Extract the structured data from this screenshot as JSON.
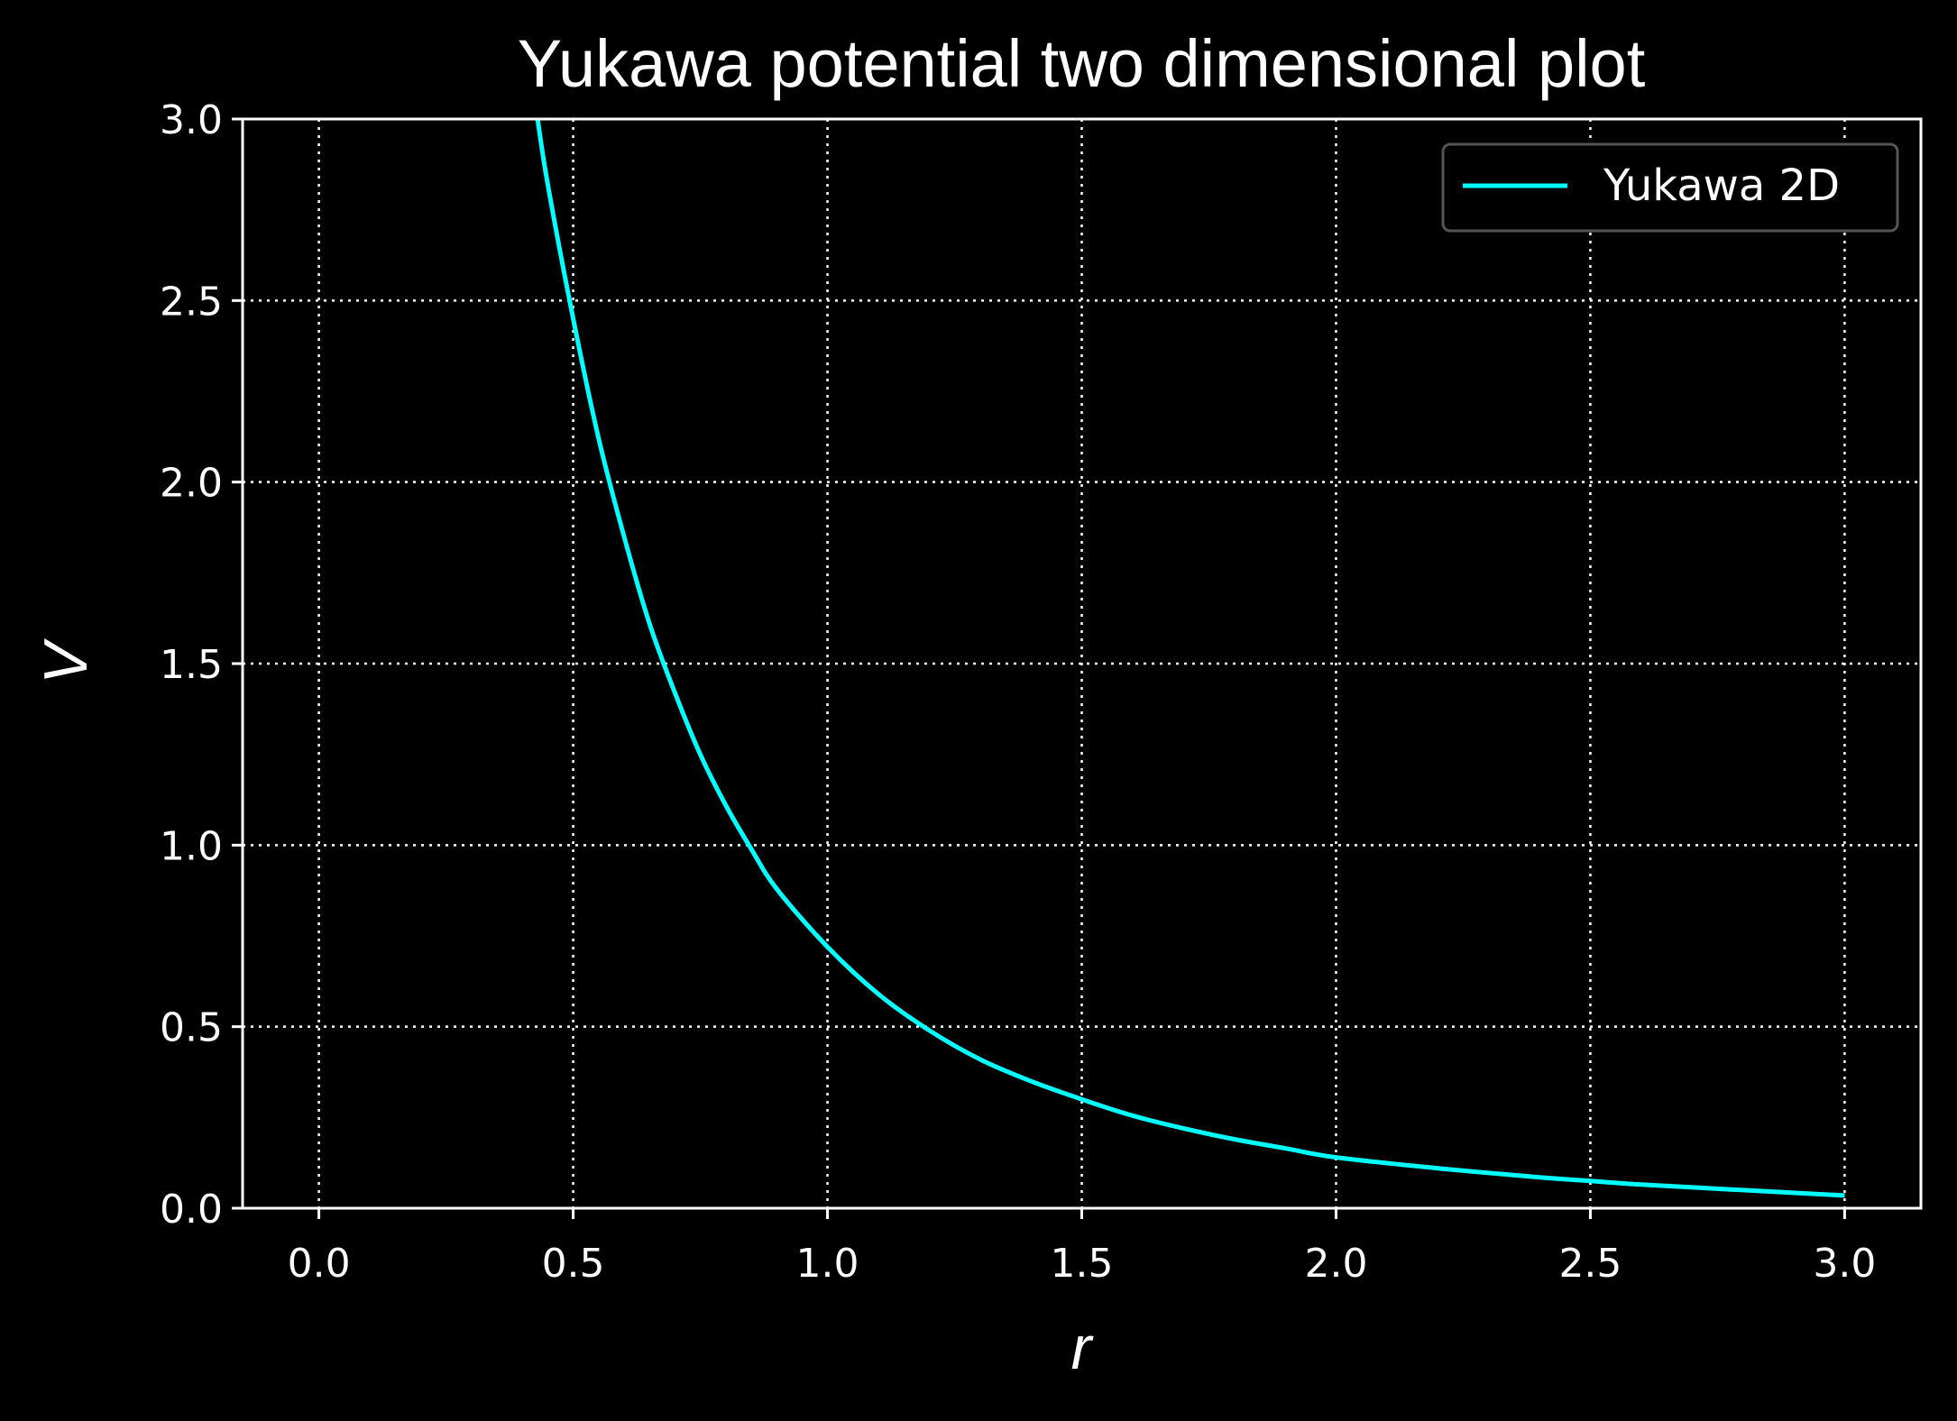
{
  "chart_data": {
    "type": "line",
    "title": "Yukawa potential two dimensional plot",
    "xlabel": "r",
    "ylabel": "V",
    "xlim": [
      -0.15,
      3.15
    ],
    "ylim": [
      0.0,
      3.0
    ],
    "xticks": [
      "0.0",
      "0.5",
      "1.0",
      "1.5",
      "2.0",
      "2.5",
      "3.0"
    ],
    "yticks": [
      "0.0",
      "0.5",
      "1.0",
      "1.5",
      "2.0",
      "2.5",
      "3.0"
    ],
    "grid": true,
    "grid_style": "dotted",
    "legend_position": "top-right",
    "series": [
      {
        "name": "Yukawa 2D",
        "color": "#00ffff",
        "x": [
          0.43,
          0.45,
          0.5,
          0.55,
          0.6,
          0.65,
          0.7,
          0.75,
          0.8,
          0.85,
          0.9,
          1.0,
          1.1,
          1.2,
          1.3,
          1.4,
          1.5,
          1.6,
          1.7,
          1.8,
          1.9,
          2.0,
          2.2,
          2.4,
          2.5,
          2.6,
          2.8,
          3.0
        ],
        "y": [
          3.0,
          2.82,
          2.45,
          2.12,
          1.85,
          1.61,
          1.42,
          1.25,
          1.11,
          0.99,
          0.88,
          0.72,
          0.59,
          0.49,
          0.41,
          0.35,
          0.3,
          0.255,
          0.22,
          0.19,
          0.165,
          0.14,
          0.11,
          0.085,
          0.075,
          0.065,
          0.05,
          0.035
        ]
      }
    ]
  }
}
